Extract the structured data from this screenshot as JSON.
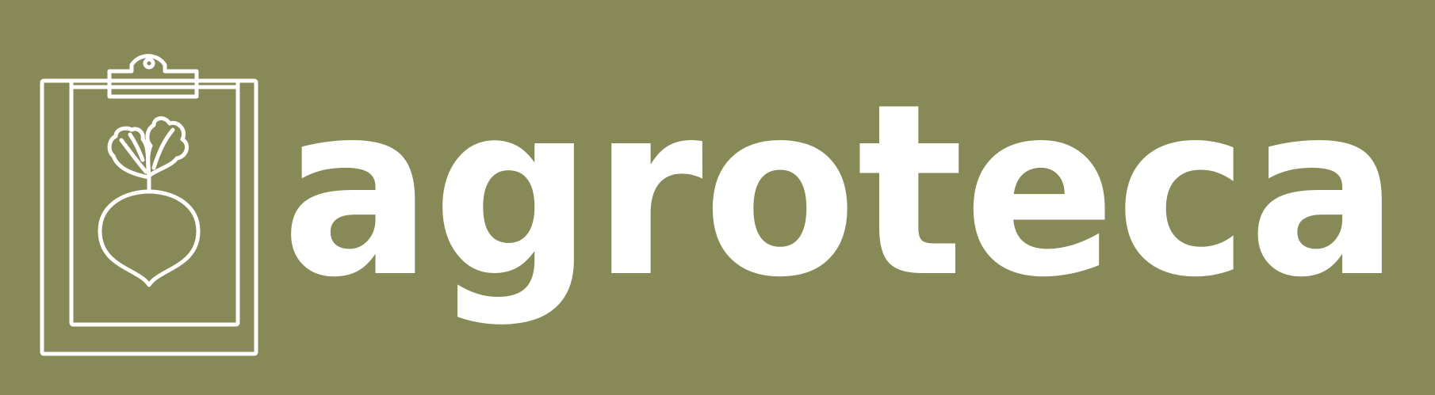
{
  "brand": {
    "name": "agroteca",
    "colors": {
      "background": "#878957",
      "foreground": "#ffffff"
    },
    "icon": "clipboard-beet-icon"
  }
}
